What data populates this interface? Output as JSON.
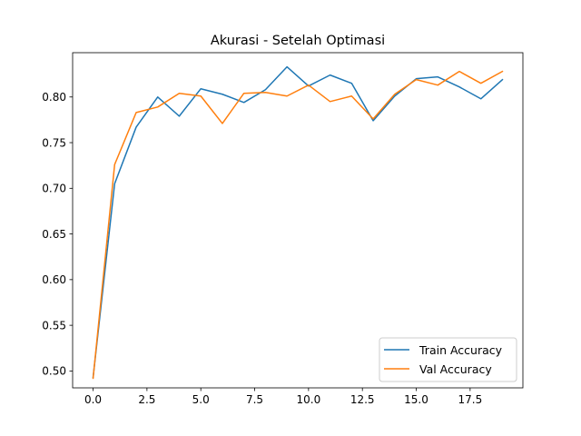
{
  "chart_data": {
    "type": "line",
    "title": "Akurasi - Setelah Optimasi",
    "xlabel": "",
    "ylabel": "",
    "xlim": [
      -0.95,
      19.95
    ],
    "ylim": [
      0.4815,
      0.8485
    ],
    "xticks": [
      0.0,
      2.5,
      5.0,
      7.5,
      10.0,
      12.5,
      15.0,
      17.5
    ],
    "xtick_labels": [
      "0.0",
      "2.5",
      "5.0",
      "7.5",
      "10.0",
      "12.5",
      "15.0",
      "17.5"
    ],
    "yticks": [
      0.5,
      0.55,
      0.6,
      0.65,
      0.7,
      0.75,
      0.8
    ],
    "ytick_labels": [
      "0.50",
      "0.55",
      "0.60",
      "0.65",
      "0.70",
      "0.75",
      "0.80"
    ],
    "grid": false,
    "legend_position": "lower-right",
    "x": [
      0,
      1,
      2,
      3,
      4,
      5,
      6,
      7,
      8,
      9,
      10,
      11,
      12,
      13,
      14,
      15,
      16,
      17,
      18,
      19
    ],
    "series": [
      {
        "name": "Train Accuracy",
        "color": "#1f77b4",
        "values": [
          0.493,
          0.705,
          0.767,
          0.8,
          0.779,
          0.809,
          0.803,
          0.794,
          0.808,
          0.833,
          0.812,
          0.824,
          0.815,
          0.774,
          0.801,
          0.82,
          0.822,
          0.811,
          0.798,
          0.819
        ]
      },
      {
        "name": "Val Accuracy",
        "color": "#ff7f0e",
        "values": [
          0.492,
          0.726,
          0.783,
          0.789,
          0.804,
          0.801,
          0.771,
          0.804,
          0.805,
          0.801,
          0.813,
          0.795,
          0.801,
          0.776,
          0.803,
          0.819,
          0.813,
          0.828,
          0.815,
          0.828
        ]
      }
    ]
  }
}
